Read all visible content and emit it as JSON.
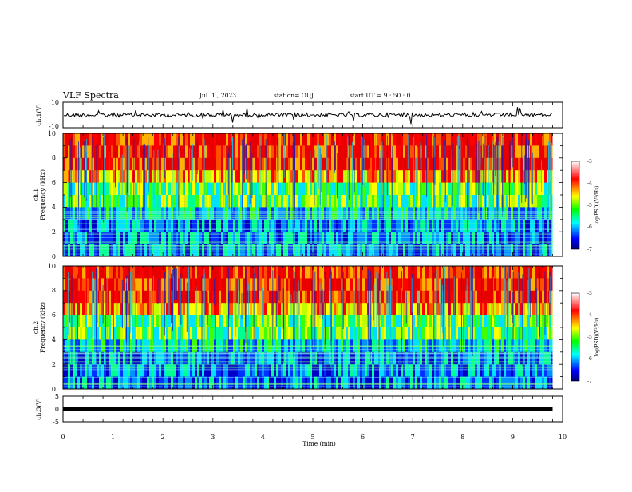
{
  "header": {
    "title": "VLF Spectra",
    "date": "Jul.  1 , 2023",
    "station": "station= OUJ",
    "start_ut": "start  UT  =   9  : 50 : 0"
  },
  "chart_data": [
    {
      "type": "line",
      "panel": "ch1-waveform",
      "ylabel": "ch.1(V)",
      "ytick_labels": [
        "10",
        "-10"
      ],
      "ylim": [
        -10,
        10
      ],
      "xlim": [
        0,
        10
      ],
      "trace_level": 0,
      "trace_end": 9.8,
      "note_colors": {
        "trace": "#000000"
      }
    },
    {
      "type": "heatmap",
      "panel": "ch1-spectrogram",
      "ylabel": "ch.1\nFrequency  (kHz)",
      "ylabel_line1": "ch.1",
      "ylabel_line2": "Frequency  (kHz)",
      "ytick_labels": [
        "0",
        "2",
        "4",
        "6",
        "8",
        "10"
      ],
      "ylim": [
        0,
        10
      ],
      "xlim": [
        0,
        10
      ],
      "data_end": 9.8,
      "colorbar": {
        "label": "log(PSD)(V²/Hz)",
        "ticks": [
          "-3",
          "-4",
          "-5",
          "-6",
          "-7"
        ],
        "range": [
          -7,
          -3
        ],
        "colors": [
          "#00006e",
          "#0000ff",
          "#00ffff",
          "#00ff00",
          "#ffff00",
          "#ff0000",
          "#ffffff"
        ]
      }
    },
    {
      "type": "heatmap",
      "panel": "ch2-spectrogram",
      "ylabel_line1": "ch.2",
      "ylabel_line2": "Frequency  (kHz)",
      "ytick_labels": [
        "0",
        "2",
        "4",
        "6",
        "8",
        "10"
      ],
      "ylim": [
        0,
        10
      ],
      "xlim": [
        0,
        10
      ],
      "data_end": 9.8,
      "colorbar": {
        "label": "log(PSD)(V²/Hz)",
        "ticks": [
          "-3",
          "-4",
          "-5",
          "-6",
          "-7"
        ],
        "range": [
          -7,
          -3
        ]
      }
    },
    {
      "type": "line",
      "panel": "ch3-waveform",
      "ylabel": "ch.3(V)",
      "ytick_labels": [
        "5",
        "0",
        "-5"
      ],
      "ylim": [
        -5,
        5
      ],
      "xlim": [
        0,
        10
      ],
      "trace_level": 0,
      "trace_end": 9.8,
      "xlabel": "Time  (min)",
      "xtick_labels": [
        "0",
        "1",
        "2",
        "3",
        "4",
        "5",
        "6",
        "7",
        "8",
        "9",
        "10"
      ]
    }
  ]
}
